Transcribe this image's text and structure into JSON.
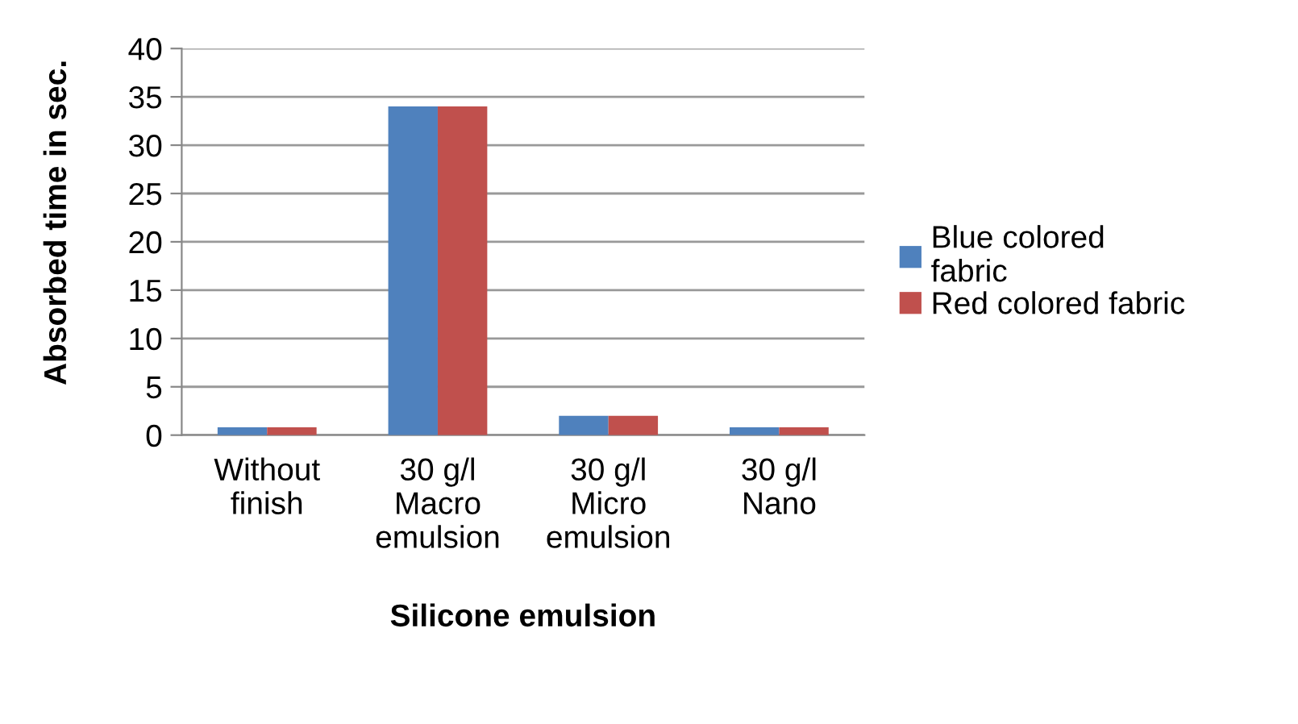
{
  "chart_data": {
    "type": "bar",
    "xlabel": "Silicone emulsion",
    "ylabel": "Absorbed time in sec.",
    "categories": [
      "Without\nfinish",
      "30 g/l\nMacro\nemulsion",
      "30 g/l\nMicro\nemulsion",
      "30 g/l\nNano"
    ],
    "series": [
      {
        "name": "Blue colored\nfabric",
        "color": "#4f81bd",
        "values": [
          0.8,
          34,
          2,
          0.8
        ]
      },
      {
        "name": "Red colored fabric",
        "color": "#c0504d",
        "values": [
          0.8,
          34,
          2,
          0.8
        ]
      }
    ],
    "ylim": [
      0,
      40
    ],
    "yticks": [
      0,
      5,
      10,
      15,
      20,
      25,
      30,
      35,
      40
    ],
    "grid": "y",
    "legend": "right"
  }
}
